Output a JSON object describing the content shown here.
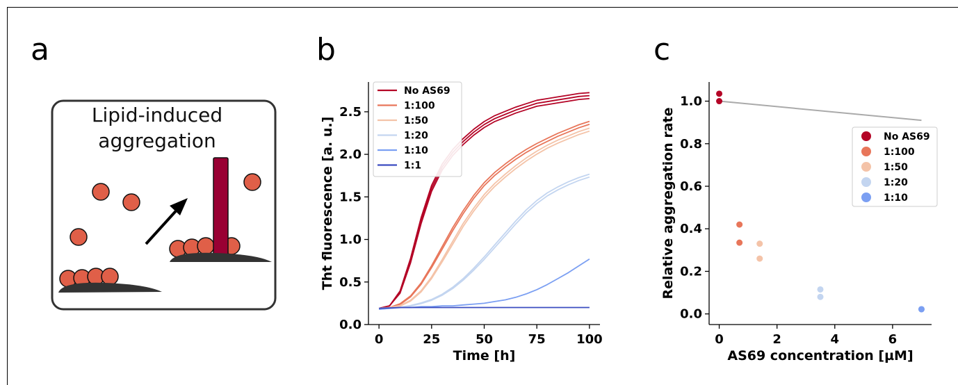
{
  "panels": {
    "a": {
      "letter": "a",
      "box_text_line1": "Lipid-induced",
      "box_text_line2": "aggregation"
    },
    "b": {
      "letter": "b"
    },
    "c": {
      "letter": "c"
    }
  },
  "chart_data": [
    {
      "type": "line",
      "panel": "b",
      "xlabel": "Time [h]",
      "ylabel": "Tht fluorescence [a. u.]",
      "xlim": [
        -5,
        105
      ],
      "ylim": [
        0,
        2.85
      ],
      "xticks": [
        0,
        25,
        50,
        75,
        100
      ],
      "yticks": [
        0.0,
        0.5,
        1.0,
        1.5,
        2.0,
        2.5
      ],
      "grid": false,
      "legend_position": "top-left",
      "series": [
        {
          "name": "No AS69",
          "color": "#b40426",
          "replicates": 3,
          "x": [
            0,
            5,
            10,
            15,
            20,
            25,
            30,
            35,
            40,
            45,
            50,
            55,
            60,
            65,
            70,
            75,
            80,
            85,
            90,
            95,
            100
          ],
          "y": [
            0.19,
            0.22,
            0.38,
            0.75,
            1.22,
            1.6,
            1.85,
            2.02,
            2.15,
            2.26,
            2.35,
            2.42,
            2.47,
            2.52,
            2.56,
            2.6,
            2.62,
            2.64,
            2.66,
            2.68,
            2.69
          ]
        },
        {
          "name": "1:100",
          "color": "#e8765a",
          "replicates": 2,
          "x": [
            0,
            5,
            10,
            15,
            20,
            25,
            30,
            35,
            40,
            45,
            50,
            55,
            60,
            65,
            70,
            75,
            80,
            85,
            90,
            95,
            100
          ],
          "y": [
            0.19,
            0.2,
            0.24,
            0.33,
            0.48,
            0.68,
            0.9,
            1.12,
            1.32,
            1.5,
            1.65,
            1.77,
            1.87,
            1.96,
            2.04,
            2.11,
            2.17,
            2.23,
            2.28,
            2.33,
            2.37
          ]
        },
        {
          "name": "1:50",
          "color": "#f4c3a8",
          "replicates": 2,
          "x": [
            0,
            5,
            10,
            15,
            20,
            25,
            30,
            35,
            40,
            45,
            50,
            55,
            60,
            65,
            70,
            75,
            80,
            85,
            90,
            95,
            100
          ],
          "y": [
            0.19,
            0.2,
            0.22,
            0.28,
            0.39,
            0.55,
            0.75,
            0.96,
            1.17,
            1.35,
            1.51,
            1.64,
            1.75,
            1.85,
            1.94,
            2.02,
            2.09,
            2.15,
            2.2,
            2.25,
            2.29
          ]
        },
        {
          "name": "1:20",
          "color": "#c3d5f0",
          "replicates": 2,
          "x": [
            0,
            5,
            10,
            15,
            20,
            25,
            30,
            35,
            40,
            45,
            50,
            55,
            60,
            65,
            70,
            75,
            80,
            85,
            90,
            95,
            100
          ],
          "y": [
            0.18,
            0.19,
            0.2,
            0.22,
            0.25,
            0.29,
            0.35,
            0.43,
            0.53,
            0.65,
            0.78,
            0.92,
            1.06,
            1.2,
            1.33,
            1.44,
            1.53,
            1.6,
            1.66,
            1.71,
            1.75
          ]
        },
        {
          "name": "1:10",
          "color": "#7b9ff2",
          "replicates": 1,
          "x": [
            0,
            5,
            10,
            15,
            20,
            25,
            30,
            35,
            40,
            45,
            50,
            55,
            60,
            65,
            70,
            75,
            80,
            85,
            90,
            95,
            100
          ],
          "y": [
            0.18,
            0.19,
            0.2,
            0.2,
            0.21,
            0.21,
            0.22,
            0.22,
            0.23,
            0.24,
            0.25,
            0.27,
            0.29,
            0.32,
            0.36,
            0.41,
            0.47,
            0.54,
            0.61,
            0.69,
            0.77
          ]
        },
        {
          "name": "1:1",
          "color": "#3b4cc0",
          "replicates": 1,
          "x": [
            0,
            10,
            20,
            30,
            40,
            50,
            60,
            70,
            80,
            90,
            100
          ],
          "y": [
            0.19,
            0.2,
            0.2,
            0.2,
            0.2,
            0.2,
            0.2,
            0.2,
            0.2,
            0.2,
            0.2
          ]
        }
      ]
    },
    {
      "type": "scatter",
      "panel": "c",
      "xlabel": "AS69 concentration [µM]",
      "ylabel": "Relative aggregation rate",
      "xlim": [
        -0.35,
        7.35
      ],
      "ylim": [
        -0.05,
        1.09
      ],
      "xticks": [
        0,
        2,
        4,
        6
      ],
      "yticks": [
        0.0,
        0.2,
        0.4,
        0.6,
        0.8,
        1.0
      ],
      "grid": false,
      "legend_position": "center-right",
      "fit_line": {
        "color": "#aaaaaa",
        "x": [
          0,
          7
        ],
        "y": [
          1.0,
          0.91
        ]
      },
      "series": [
        {
          "name": "No AS69",
          "color": "#b40426",
          "x": [
            0,
            0
          ],
          "y": [
            1.035,
            1.0
          ]
        },
        {
          "name": "1:100",
          "color": "#e8765a",
          "x": [
            0.7,
            0.7
          ],
          "y": [
            0.42,
            0.335
          ]
        },
        {
          "name": "1:50",
          "color": "#f4c3a8",
          "x": [
            1.4,
            1.4
          ],
          "y": [
            0.33,
            0.26
          ]
        },
        {
          "name": "1:20",
          "color": "#c3d5f0",
          "x": [
            3.5,
            3.5
          ],
          "y": [
            0.115,
            0.08
          ]
        },
        {
          "name": "1:10",
          "color": "#7b9ff2",
          "x": [
            7.0,
            7.0
          ],
          "y": [
            0.022,
            0.022
          ]
        }
      ]
    }
  ]
}
